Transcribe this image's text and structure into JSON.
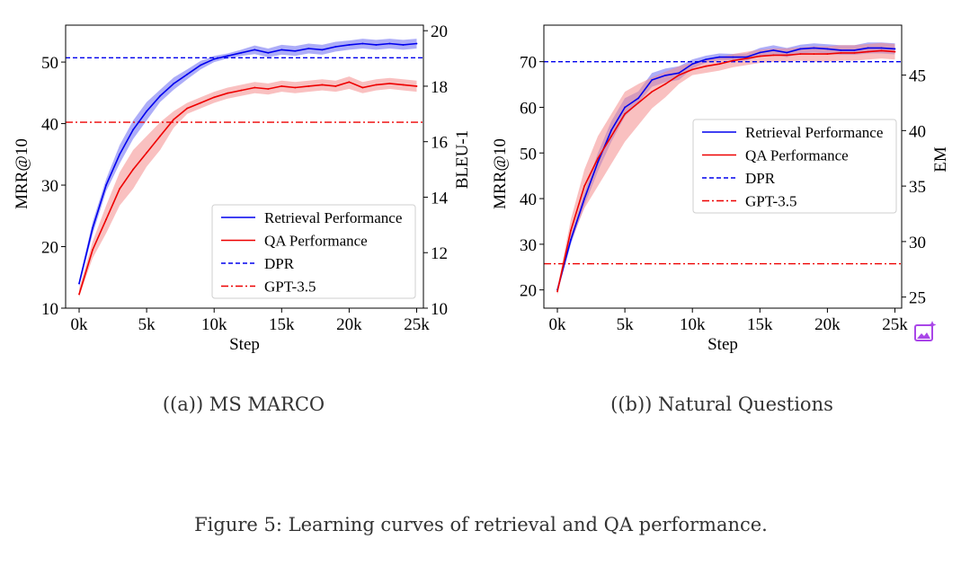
{
  "figure_caption": "Figure 5: Learning curves of retrieval and QA performance.",
  "floating_button": {
    "icon": "image-sparkle-icon"
  },
  "colors": {
    "retrieval": "#0000ee",
    "qa": "#ee0000",
    "retrieval_band": "#6a6af2",
    "qa_band": "#f48c8c",
    "caption": "#333333",
    "badge": "#a946e8"
  },
  "chart_data": [
    {
      "type": "line",
      "subcaption": "((a)) MS MARCO",
      "xlabel": "Step",
      "ylabel_left": "MRR@10",
      "ylabel_right": "BLEU-1",
      "xlim": [
        -1,
        25.5
      ],
      "ylim_left": [
        10,
        56
      ],
      "ylim_right": [
        10,
        20.2
      ],
      "x_ticks": [
        0,
        5,
        10,
        15,
        20,
        25
      ],
      "x_tick_labels": [
        "0k",
        "5k",
        "10k",
        "15k",
        "20k",
        "25k"
      ],
      "y_ticks_left": [
        10,
        20,
        30,
        40,
        50
      ],
      "y_tick_labels_left": [
        "10",
        "20",
        "30",
        "40",
        "50"
      ],
      "y_ticks_right": [
        10,
        12,
        14,
        16,
        18,
        20
      ],
      "y_tick_labels_right": [
        "10",
        "12",
        "14",
        "16",
        "18",
        "20"
      ],
      "legend": {
        "position": "lower right",
        "entries": [
          "Retrieval Performance",
          "QA Performance",
          "DPR",
          "GPT-3.5"
        ]
      },
      "x": [
        0,
        1,
        2,
        3,
        4,
        5,
        6,
        7,
        8,
        9,
        10,
        11,
        12,
        13,
        14,
        15,
        16,
        17,
        18,
        19,
        20,
        21,
        22,
        23,
        24,
        25
      ],
      "series": [
        {
          "name": "Retrieval Performance",
          "axis": "left",
          "style": "solid",
          "values": [
            14,
            23,
            30,
            35,
            39,
            42,
            44.5,
            46.5,
            48,
            49.5,
            50.5,
            51,
            51.5,
            52,
            51.5,
            52,
            51.8,
            52.2,
            52,
            52.5,
            52.8,
            53,
            52.8,
            53,
            52.8,
            53
          ],
          "lower": [
            13.5,
            22,
            29,
            33.5,
            37.5,
            40.5,
            43.5,
            45.5,
            47.2,
            48.8,
            50,
            50.6,
            51,
            51.3,
            50.8,
            51.2,
            51,
            51.4,
            51.2,
            51.7,
            52,
            52.2,
            52,
            52.2,
            52,
            52.2
          ],
          "upper": [
            14.5,
            24,
            31,
            36.5,
            40.5,
            43.5,
            45.5,
            47.5,
            48.8,
            50.2,
            51,
            51.4,
            52,
            52.7,
            52.2,
            52.8,
            52.6,
            53,
            52.8,
            53.3,
            53.5,
            53.8,
            53.6,
            53.8,
            53.6,
            53.8
          ]
        },
        {
          "name": "QA Performance",
          "axis": "right",
          "style": "solid",
          "values": [
            10.5,
            12.1,
            13.2,
            14.3,
            15.0,
            15.6,
            16.2,
            16.8,
            17.2,
            17.4,
            17.6,
            17.75,
            17.85,
            17.95,
            17.9,
            18.0,
            17.95,
            18.0,
            18.05,
            18.0,
            18.15,
            17.95,
            18.05,
            18.1,
            18.05,
            18.0
          ],
          "lower": [
            10.4,
            11.8,
            12.7,
            13.7,
            14.3,
            15.1,
            15.7,
            16.5,
            17.0,
            17.2,
            17.4,
            17.55,
            17.65,
            17.75,
            17.7,
            17.8,
            17.75,
            17.8,
            17.85,
            17.8,
            17.9,
            17.75,
            17.85,
            17.9,
            17.85,
            17.8
          ],
          "upper": [
            10.7,
            12.4,
            13.7,
            14.9,
            15.7,
            16.2,
            16.7,
            17.1,
            17.4,
            17.6,
            17.8,
            17.95,
            18.05,
            18.15,
            18.1,
            18.2,
            18.15,
            18.2,
            18.25,
            18.2,
            18.35,
            18.15,
            18.25,
            18.3,
            18.25,
            18.2
          ]
        }
      ],
      "reference_lines": [
        {
          "name": "DPR",
          "axis": "left",
          "value": 50.7,
          "style": "dashed"
        },
        {
          "name": "GPT-3.5",
          "axis": "right",
          "value": 16.7,
          "style": "dashdot"
        }
      ]
    },
    {
      "type": "line",
      "subcaption": "((b)) Natural Questions",
      "xlabel": "Step",
      "ylabel_left": "MRR@10",
      "ylabel_right": "EM",
      "xlim": [
        -1,
        25.5
      ],
      "ylim_left": [
        16,
        78
      ],
      "ylim_right": [
        24,
        49.5
      ],
      "x_ticks": [
        0,
        5,
        10,
        15,
        20,
        25
      ],
      "x_tick_labels": [
        "0k",
        "5k",
        "10k",
        "15k",
        "20k",
        "25k"
      ],
      "y_ticks_left": [
        20,
        30,
        40,
        50,
        60,
        70
      ],
      "y_tick_labels_left": [
        "20",
        "30",
        "40",
        "50",
        "60",
        "70"
      ],
      "y_ticks_right": [
        25,
        30,
        35,
        40,
        45
      ],
      "y_tick_labels_right": [
        "25",
        "30",
        "35",
        "40",
        "45"
      ],
      "legend": {
        "position": "upper right",
        "entries": [
          "Retrieval Performance",
          "QA Performance",
          "DPR",
          "GPT-3.5"
        ]
      },
      "x": [
        0,
        1,
        2,
        3,
        4,
        5,
        6,
        7,
        8,
        9,
        10,
        11,
        12,
        13,
        14,
        15,
        16,
        17,
        18,
        19,
        20,
        21,
        22,
        23,
        24,
        25
      ],
      "series": [
        {
          "name": "Retrieval Performance",
          "axis": "left",
          "style": "solid",
          "values": [
            20,
            31,
            40,
            48,
            55,
            60,
            62,
            66,
            67,
            67.5,
            69.5,
            70.5,
            71,
            71,
            71,
            72,
            72.5,
            72,
            72.8,
            73,
            72.8,
            72.5,
            72.5,
            73,
            73,
            72.8
          ],
          "lower": [
            19.5,
            30,
            38.5,
            46,
            52.5,
            58,
            61,
            64.5,
            65.5,
            66,
            68.5,
            69.8,
            70.3,
            70.3,
            70.2,
            71.2,
            71.6,
            71,
            71.8,
            72,
            71.8,
            71.5,
            71.5,
            71.8,
            71.8,
            71.6
          ],
          "upper": [
            20.5,
            32,
            41.5,
            50,
            57,
            62,
            63.5,
            67.5,
            68.5,
            69,
            70.5,
            71.3,
            71.8,
            71.7,
            71.8,
            73,
            73.6,
            73,
            73.7,
            74,
            73.8,
            73.6,
            73.6,
            74.2,
            74.2,
            74
          ]
        },
        {
          "name": "QA Performance",
          "axis": "right",
          "style": "solid",
          "values": [
            25.5,
            31,
            35,
            37.5,
            39.5,
            41.5,
            42.5,
            43.5,
            44.2,
            45,
            45.5,
            45.8,
            46,
            46.3,
            46.5,
            46.7,
            46.8,
            46.8,
            46.9,
            46.9,
            46.9,
            47,
            47,
            47.1,
            47.2,
            47.1
          ],
          "lower": [
            25.2,
            30,
            33,
            35,
            37,
            39,
            40.5,
            42,
            43,
            44.2,
            45,
            45.2,
            45.4,
            45.7,
            45.9,
            46.1,
            46.2,
            46.2,
            46.3,
            46.2,
            46.2,
            46.3,
            46.3,
            46.4,
            46.5,
            46.4
          ],
          "upper": [
            25.8,
            32,
            36.5,
            39.5,
            41.5,
            43.5,
            44.2,
            44.8,
            45.3,
            45.8,
            46.1,
            46.4,
            46.6,
            46.9,
            47.1,
            47.3,
            47.4,
            47.4,
            47.5,
            47.6,
            47.6,
            47.7,
            47.7,
            47.8,
            47.9,
            47.8
          ]
        }
      ],
      "reference_lines": [
        {
          "name": "DPR",
          "axis": "left",
          "value": 70,
          "style": "dashed"
        },
        {
          "name": "GPT-3.5",
          "axis": "right",
          "value": 28,
          "style": "dashdot"
        }
      ]
    }
  ]
}
